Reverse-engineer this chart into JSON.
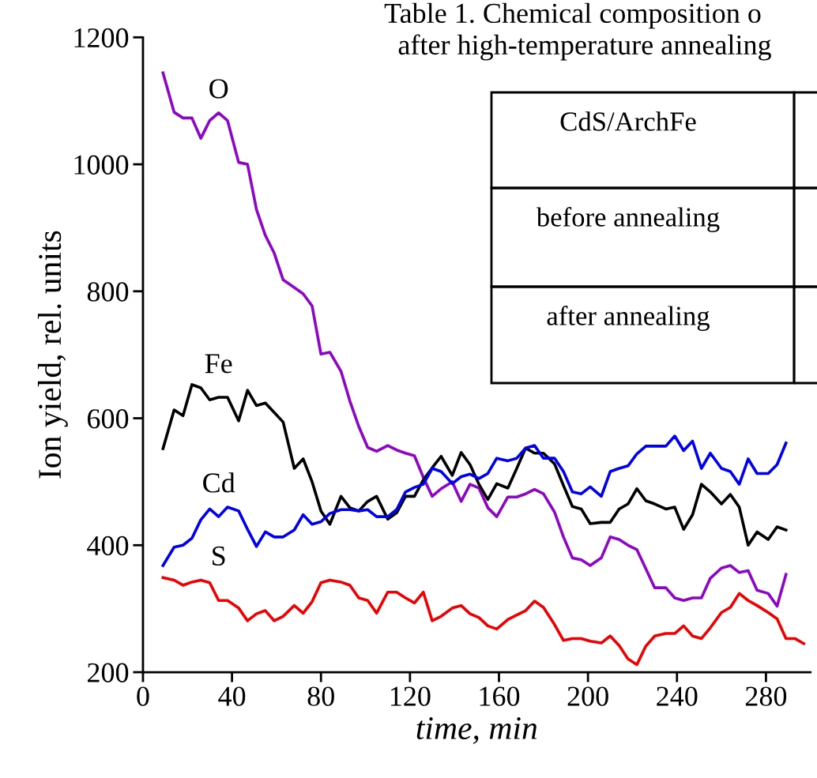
{
  "chart_data": {
    "type": "line",
    "xlabel": "time, min",
    "ylabel": "Ion yield, rel. units",
    "x": [
      9,
      14,
      18,
      22,
      26,
      30,
      34,
      38,
      43,
      47,
      51,
      55,
      59,
      63,
      68,
      72,
      76,
      80,
      84,
      89,
      93,
      97,
      101,
      105,
      110,
      114,
      118,
      122,
      126,
      130,
      134,
      139,
      143,
      147,
      151,
      155,
      159,
      164,
      168,
      172,
      176,
      180,
      185,
      189,
      193,
      197,
      201,
      206,
      210,
      214,
      218,
      222,
      226,
      230,
      235,
      239,
      243,
      247,
      251,
      255,
      260,
      264,
      268,
      272,
      276,
      281,
      285,
      289,
      293,
      297
    ],
    "series": [
      {
        "name": "O",
        "color": "#8e05c6",
        "values": [
          1144,
          1082,
          1073,
          1073,
          1041,
          1069,
          1081,
          1069,
          1003,
          1000,
          929,
          888,
          860,
          818,
          806,
          796,
          777,
          701,
          704,
          674,
          627,
          587,
          554,
          548,
          557,
          550,
          545,
          541,
          507,
          477,
          489,
          500,
          469,
          496,
          490,
          459,
          445,
          476,
          476,
          481,
          488,
          481,
          452,
          413,
          380,
          377,
          368,
          380,
          413,
          409,
          400,
          393,
          363,
          333,
          333,
          317,
          313,
          317,
          317,
          348,
          364,
          368,
          357,
          360,
          329,
          324,
          304,
          354,
          null,
          null
        ]
      },
      {
        "name": "Fe",
        "color": "#000000",
        "values": [
          552,
          613,
          604,
          653,
          648,
          629,
          633,
          633,
          596,
          644,
          620,
          624,
          609,
          594,
          521,
          536,
          500,
          454,
          433,
          477,
          459,
          454,
          469,
          477,
          441,
          451,
          477,
          477,
          503,
          522,
          540,
          510,
          546,
          527,
          496,
          472,
          497,
          490,
          521,
          553,
          545,
          545,
          528,
          494,
          461,
          457,
          434,
          436,
          436,
          457,
          465,
          489,
          470,
          465,
          457,
          460,
          425,
          448,
          496,
          484,
          465,
          480,
          460,
          400,
          421,
          409,
          429,
          424,
          null,
          null
        ]
      },
      {
        "name": "Cd",
        "color": "#0000ee",
        "values": [
          368,
          397,
          400,
          411,
          440,
          457,
          445,
          460,
          454,
          425,
          398,
          421,
          413,
          413,
          424,
          448,
          433,
          437,
          450,
          456,
          456,
          454,
          456,
          445,
          445,
          456,
          484,
          491,
          496,
          521,
          516,
          497,
          508,
          512,
          505,
          513,
          537,
          533,
          537,
          553,
          557,
          537,
          537,
          516,
          484,
          481,
          492,
          477,
          516,
          521,
          525,
          544,
          556,
          556,
          556,
          572,
          549,
          564,
          521,
          545,
          521,
          516,
          496,
          536,
          513,
          513,
          527,
          561,
          null,
          null
        ]
      },
      {
        "name": "S",
        "color": "#ee0000",
        "values": [
          349,
          345,
          337,
          342,
          345,
          341,
          313,
          313,
          301,
          281,
          292,
          297,
          281,
          288,
          305,
          293,
          311,
          341,
          345,
          342,
          337,
          317,
          313,
          293,
          326,
          326,
          317,
          309,
          326,
          281,
          288,
          301,
          305,
          292,
          286,
          273,
          268,
          283,
          290,
          297,
          312,
          302,
          275,
          250,
          253,
          253,
          249,
          246,
          257,
          242,
          221,
          212,
          241,
          257,
          261,
          261,
          273,
          257,
          253,
          270,
          294,
          302,
          324,
          313,
          305,
          294,
          284,
          253,
          253,
          245
        ]
      }
    ],
    "xlim": [
      0,
      300
    ],
    "xticks": [
      0,
      40,
      80,
      120,
      160,
      200,
      240,
      280
    ],
    "ylim": [
      200,
      1200
    ],
    "yticks": [
      200,
      400,
      600,
      800,
      1000,
      1200
    ],
    "grid": false,
    "legend": false,
    "marker": "none",
    "line_style": "solid",
    "annotations": [
      "Table 1. Chemical composition o",
      "after high-temperature annealing",
      "CdS/ArchFe",
      "before annealing",
      "after annealing"
    ]
  }
}
